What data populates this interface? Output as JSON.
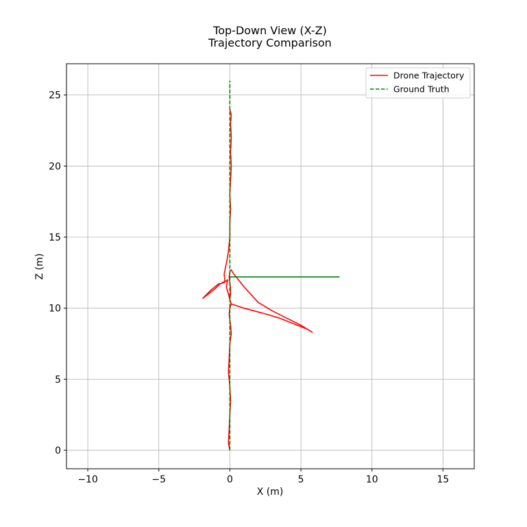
{
  "chart_data": {
    "type": "line",
    "title_line1": "Top-Down View (X-Z)",
    "title_line2": "Trajectory Comparison",
    "xlabel": "X (m)",
    "ylabel": "Z (m)",
    "xlim": [
      -11.5,
      17.2
    ],
    "ylim": [
      -1.3,
      27.2
    ],
    "xticks": [
      -10,
      -5,
      0,
      5,
      10,
      15
    ],
    "xtick_labels": [
      "−10",
      "−5",
      "0",
      "5",
      "10",
      "15"
    ],
    "yticks": [
      0,
      5,
      10,
      15,
      20,
      25
    ],
    "ytick_labels": [
      "0",
      "5",
      "10",
      "15",
      "20",
      "25"
    ],
    "grid": true,
    "legend_position": "top-right",
    "series": [
      {
        "name": "Drone Trajectory",
        "color": "#ff0000",
        "style": "solid",
        "x": [
          0.0,
          -0.1,
          -0.05,
          0.0,
          0.05,
          0.0,
          -0.1,
          -0.05,
          0.0,
          0.1,
          0.05,
          0.0,
          -0.05,
          0.0,
          0.1,
          0.0,
          0.05,
          0.05,
          0.0,
          -0.05,
          0.0,
          0.1,
          0.2,
          1.0,
          2.0,
          3.0,
          4.0,
          5.0,
          5.8,
          5.5,
          4.5,
          3.5,
          2.5,
          1.0,
          0.1,
          0.0,
          -0.1,
          -0.25,
          -0.15,
          -0.4,
          -0.8,
          -1.3,
          -1.9,
          -1.5,
          -1.0,
          -0.7,
          -0.35,
          -0.4,
          -0.3,
          -0.2,
          -0.1,
          0.0,
          0.0,
          0.05,
          0.0,
          0.05,
          0.1,
          0.05,
          0.1,
          0.05,
          0.1,
          0.0
        ],
        "y": [
          0.0,
          0.5,
          1.5,
          2.5,
          3.5,
          4.5,
          5.5,
          6.5,
          7.5,
          8.2,
          8.8,
          9.2,
          9.6,
          10.0,
          10.3,
          10.6,
          11.0,
          11.4,
          11.8,
          12.2,
          12.6,
          12.7,
          12.5,
          11.5,
          10.4,
          9.8,
          9.3,
          8.8,
          8.3,
          8.5,
          8.9,
          9.3,
          9.6,
          10.0,
          10.3,
          10.6,
          11.0,
          11.5,
          12.0,
          11.8,
          11.7,
          11.3,
          10.7,
          11.0,
          11.4,
          11.7,
          11.9,
          12.4,
          12.9,
          13.4,
          14.0,
          15.0,
          16.0,
          17.0,
          18.0,
          19.0,
          20.0,
          21.0,
          22.0,
          23.0,
          23.6,
          24.0
        ]
      },
      {
        "name": "Ground Truth",
        "color": "#008000",
        "style": "dashed",
        "x": [
          0.0,
          0.0,
          7.7,
          0.0,
          0.0
        ],
        "y": [
          0.0,
          12.2,
          12.2,
          12.2,
          26.0
        ]
      }
    ]
  }
}
